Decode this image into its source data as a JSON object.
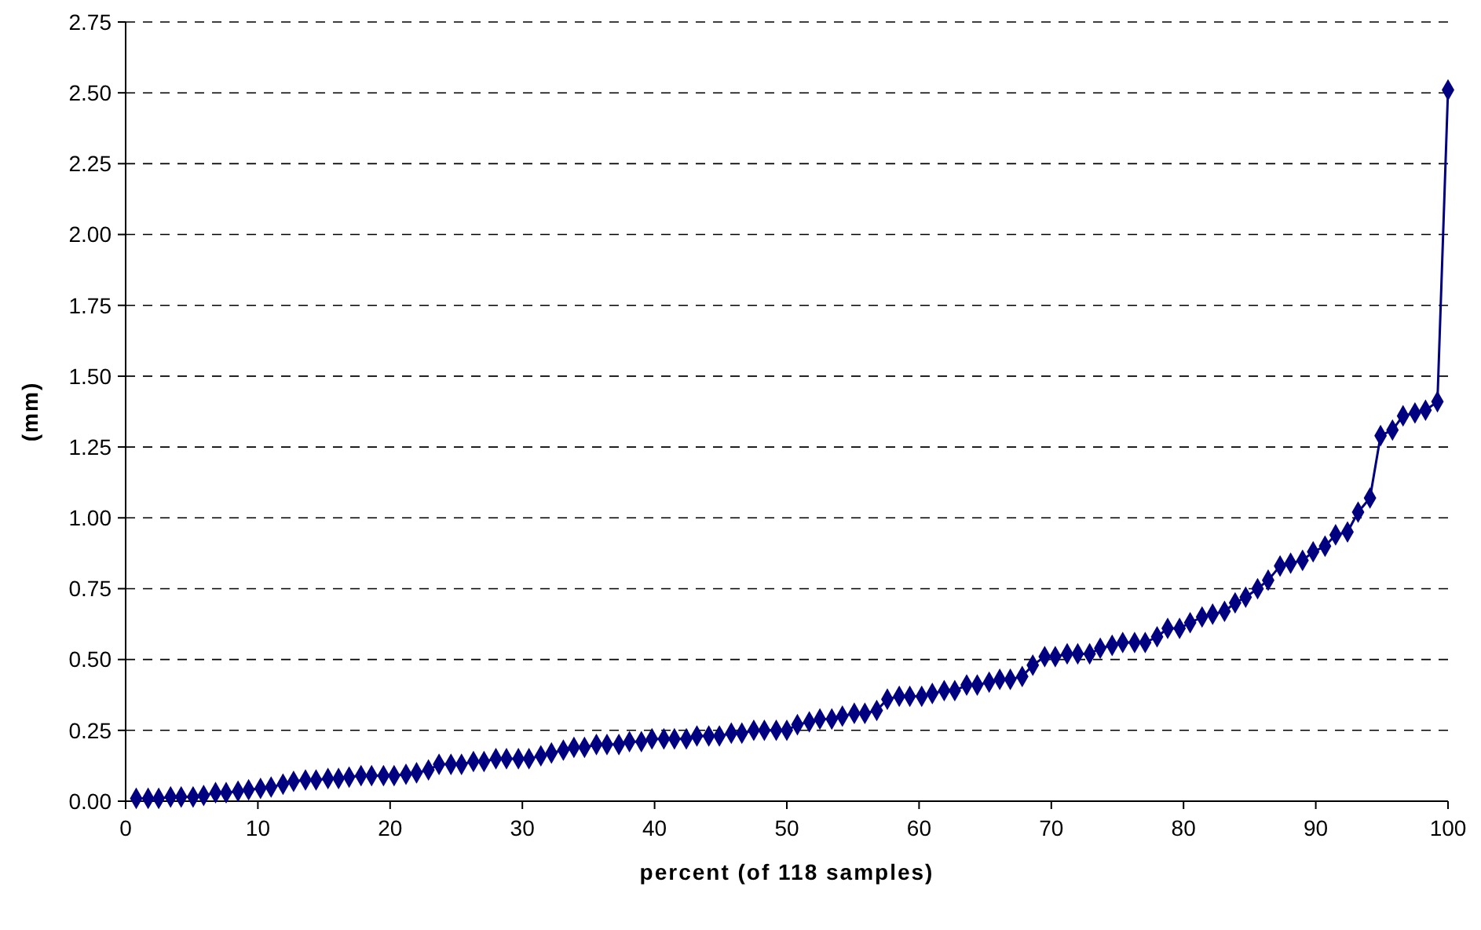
{
  "chart_data": {
    "type": "line",
    "xlabel": "percent (of 118 samples)",
    "ylabel": "(mm)",
    "xlim": [
      0,
      100
    ],
    "xticks": [
      0,
      10,
      20,
      30,
      40,
      50,
      60,
      70,
      80,
      90,
      100
    ],
    "ylim": [
      0,
      2.75
    ],
    "yticks": [
      {
        "value": 0,
        "label": "0.00"
      },
      {
        "value": 0.25,
        "label": "0.25"
      },
      {
        "value": 0.5,
        "label": "0.50"
      },
      {
        "value": 0.75,
        "label": "0.75"
      },
      {
        "value": 1,
        "label": "1.00"
      },
      {
        "value": 1.25,
        "label": "1.25"
      },
      {
        "value": 1.5,
        "label": "1.50"
      },
      {
        "value": 1.75,
        "label": "1.75"
      },
      {
        "value": 2,
        "label": "2.00"
      },
      {
        "value": 2.25,
        "label": "2.25"
      },
      {
        "value": 2.5,
        "label": "2.50"
      },
      {
        "value": 2.75,
        "label": "2.75"
      }
    ],
    "grid": "y",
    "marker": "diamond",
    "line_style": "solid",
    "x": [
      0.8,
      1.7,
      2.5,
      3.4,
      4.2,
      5.1,
      5.9,
      6.8,
      7.6,
      8.5,
      9.3,
      10.2,
      11.0,
      11.9,
      12.7,
      13.6,
      14.4,
      15.3,
      16.1,
      16.9,
      17.8,
      18.6,
      19.5,
      20.3,
      21.2,
      22.0,
      22.9,
      23.7,
      24.6,
      25.4,
      26.3,
      27.1,
      28.0,
      28.8,
      29.7,
      30.5,
      31.4,
      32.2,
      33.1,
      33.9,
      34.7,
      35.6,
      36.4,
      37.3,
      38.1,
      39.0,
      39.8,
      40.7,
      41.5,
      42.4,
      43.2,
      44.1,
      44.9,
      45.8,
      46.6,
      47.5,
      48.3,
      49.2,
      50.0,
      50.8,
      51.7,
      52.5,
      53.4,
      54.2,
      55.1,
      55.9,
      56.8,
      57.6,
      58.5,
      59.3,
      60.2,
      61.0,
      61.9,
      62.7,
      63.6,
      64.4,
      65.3,
      66.1,
      66.9,
      67.8,
      68.6,
      69.5,
      70.3,
      71.2,
      72.0,
      72.9,
      73.7,
      74.6,
      75.4,
      76.3,
      77.1,
      78.0,
      78.8,
      79.7,
      80.5,
      81.4,
      82.2,
      83.1,
      83.9,
      84.7,
      85.6,
      86.4,
      87.3,
      88.1,
      89.0,
      89.8,
      90.7,
      91.5,
      92.4,
      93.2,
      94.1,
      94.9,
      95.8,
      96.6,
      97.5,
      98.3,
      99.2,
      100.0
    ],
    "series": [
      {
        "color": "#000080",
        "values": [
          0.01,
          0.01,
          0.01,
          0.015,
          0.015,
          0.015,
          0.02,
          0.03,
          0.03,
          0.035,
          0.04,
          0.045,
          0.05,
          0.06,
          0.07,
          0.075,
          0.075,
          0.08,
          0.08,
          0.085,
          0.09,
          0.09,
          0.09,
          0.09,
          0.095,
          0.1,
          0.11,
          0.13,
          0.13,
          0.13,
          0.14,
          0.14,
          0.15,
          0.15,
          0.15,
          0.15,
          0.16,
          0.17,
          0.18,
          0.19,
          0.19,
          0.2,
          0.2,
          0.2,
          0.21,
          0.21,
          0.22,
          0.22,
          0.22,
          0.22,
          0.23,
          0.23,
          0.23,
          0.24,
          0.24,
          0.25,
          0.25,
          0.25,
          0.25,
          0.27,
          0.28,
          0.29,
          0.29,
          0.3,
          0.31,
          0.31,
          0.32,
          0.36,
          0.37,
          0.37,
          0.37,
          0.38,
          0.39,
          0.39,
          0.41,
          0.41,
          0.42,
          0.43,
          0.43,
          0.44,
          0.48,
          0.51,
          0.51,
          0.52,
          0.52,
          0.52,
          0.54,
          0.55,
          0.56,
          0.56,
          0.56,
          0.58,
          0.61,
          0.61,
          0.63,
          0.65,
          0.66,
          0.67,
          0.7,
          0.72,
          0.75,
          0.78,
          0.83,
          0.84,
          0.85,
          0.88,
          0.9,
          0.94,
          0.95,
          1.02,
          1.07,
          1.29,
          1.31,
          1.36,
          1.37,
          1.38,
          1.41,
          2.51
        ]
      }
    ]
  }
}
